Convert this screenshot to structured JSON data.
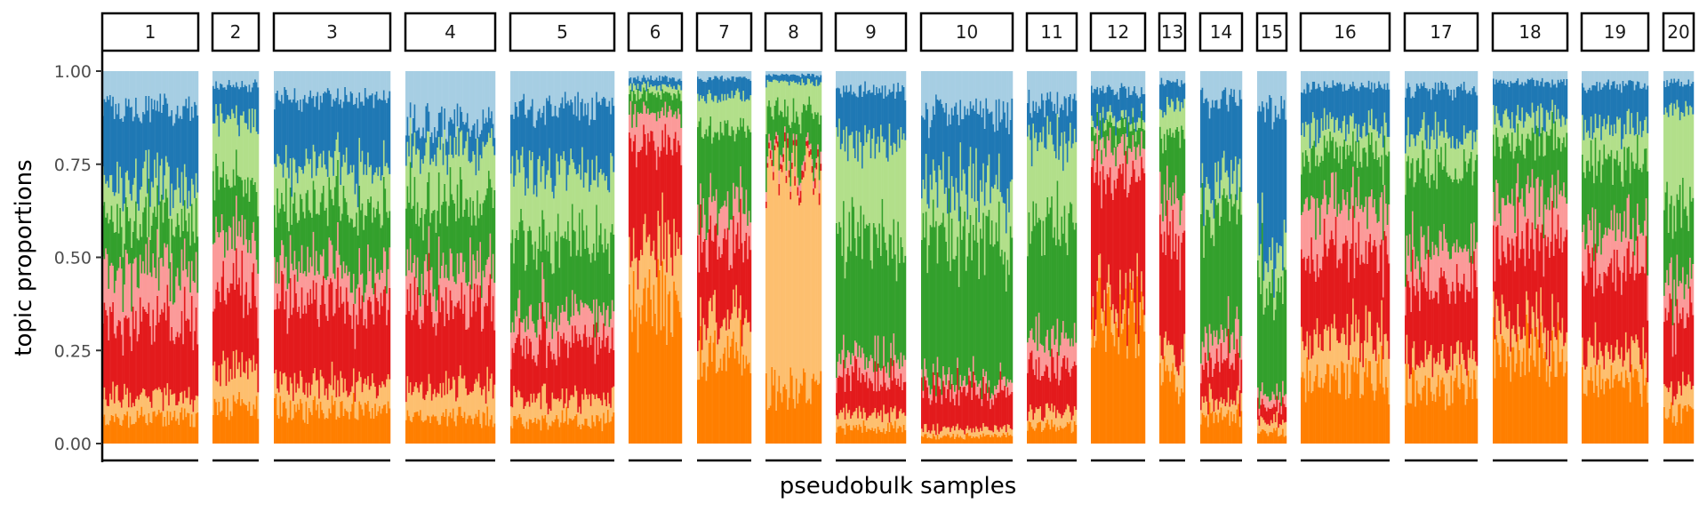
{
  "chart_data": {
    "type": "stacked_bar_facet",
    "title": "",
    "xlabel": "pseudobulk samples",
    "ylabel": "topic proportions",
    "ylim": [
      0,
      1
    ],
    "yticks": [
      "0.00",
      "0.25",
      "0.50",
      "0.75",
      "1.00"
    ],
    "grid": false,
    "legend": "none",
    "topics": [
      {
        "color": "#ff7f00"
      },
      {
        "color": "#fdbf6f"
      },
      {
        "color": "#e31a1c"
      },
      {
        "color": "#fb9a99"
      },
      {
        "color": "#33a02c"
      },
      {
        "color": "#b2df8a"
      },
      {
        "color": "#1f78b4"
      },
      {
        "color": "#a6cee3"
      }
    ],
    "facets": [
      {
        "label": "1",
        "mean_composition": [
          0.07,
          0.06,
          0.2,
          0.14,
          0.13,
          0.1,
          0.2,
          0.1
        ]
      },
      {
        "label": "2",
        "mean_composition": [
          0.1,
          0.1,
          0.2,
          0.15,
          0.15,
          0.17,
          0.09,
          0.04
        ]
      },
      {
        "label": "3",
        "mean_composition": [
          0.09,
          0.07,
          0.22,
          0.1,
          0.16,
          0.11,
          0.18,
          0.07
        ]
      },
      {
        "label": "4",
        "mean_composition": [
          0.07,
          0.08,
          0.22,
          0.1,
          0.18,
          0.14,
          0.07,
          0.14
        ]
      },
      {
        "label": "5",
        "mean_composition": [
          0.06,
          0.06,
          0.15,
          0.08,
          0.2,
          0.18,
          0.17,
          0.1
        ]
      },
      {
        "label": "6",
        "mean_composition": [
          0.38,
          0.15,
          0.28,
          0.08,
          0.05,
          0.02,
          0.02,
          0.02
        ]
      },
      {
        "label": "7",
        "mean_composition": [
          0.25,
          0.1,
          0.2,
          0.1,
          0.2,
          0.08,
          0.05,
          0.02
        ]
      },
      {
        "label": "8",
        "mean_composition": [
          0.15,
          0.58,
          0.02,
          0.02,
          0.12,
          0.08,
          0.02,
          0.01
        ]
      },
      {
        "label": "9",
        "mean_composition": [
          0.04,
          0.04,
          0.1,
          0.05,
          0.33,
          0.26,
          0.13,
          0.05
        ]
      },
      {
        "label": "10",
        "mean_composition": [
          0.02,
          0.02,
          0.1,
          0.03,
          0.38,
          0.14,
          0.2,
          0.11
        ]
      },
      {
        "label": "11",
        "mean_composition": [
          0.05,
          0.04,
          0.12,
          0.08,
          0.3,
          0.22,
          0.1,
          0.09
        ]
      },
      {
        "label": "12",
        "mean_composition": [
          0.35,
          0.05,
          0.32,
          0.08,
          0.05,
          0.02,
          0.08,
          0.05
        ]
      },
      {
        "label": "13",
        "mean_composition": [
          0.18,
          0.07,
          0.3,
          0.12,
          0.15,
          0.08,
          0.07,
          0.03
        ]
      },
      {
        "label": "14",
        "mean_composition": [
          0.07,
          0.04,
          0.1,
          0.07,
          0.35,
          0.08,
          0.22,
          0.07
        ]
      },
      {
        "label": "15",
        "mean_composition": [
          0.03,
          0.03,
          0.04,
          0.03,
          0.3,
          0.1,
          0.35,
          0.12
        ]
      },
      {
        "label": "16",
        "mean_composition": [
          0.17,
          0.11,
          0.23,
          0.13,
          0.14,
          0.07,
          0.11,
          0.04
        ]
      },
      {
        "label": "17",
        "mean_composition": [
          0.15,
          0.08,
          0.2,
          0.1,
          0.22,
          0.08,
          0.12,
          0.05
        ]
      },
      {
        "label": "18",
        "mean_composition": [
          0.25,
          0.08,
          0.22,
          0.12,
          0.15,
          0.06,
          0.09,
          0.03
        ]
      },
      {
        "label": "19",
        "mean_composition": [
          0.16,
          0.08,
          0.22,
          0.11,
          0.18,
          0.1,
          0.11,
          0.04
        ]
      },
      {
        "label": "20",
        "mean_composition": [
          0.08,
          0.07,
          0.2,
          0.1,
          0.2,
          0.25,
          0.07,
          0.03
        ]
      }
    ]
  }
}
